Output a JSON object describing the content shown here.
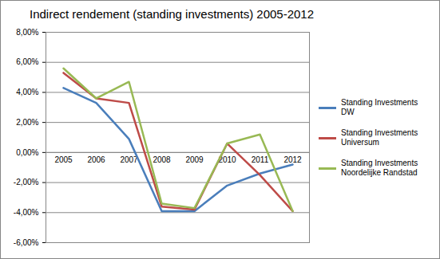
{
  "chart_data": {
    "type": "line",
    "title": "Indirect rendement (standing investments) 2005-2012",
    "categories": [
      "2005",
      "2006",
      "2007",
      "2008",
      "2009",
      "2010",
      "2011",
      "2012"
    ],
    "series": [
      {
        "name": "Standing Investments DW",
        "color": "#4a7ebb",
        "values": [
          4.3,
          3.3,
          0.9,
          -3.9,
          -3.9,
          -2.2,
          -1.4,
          -0.8
        ]
      },
      {
        "name": "Standing Investments Universum",
        "color": "#be4b48",
        "values": [
          5.3,
          3.6,
          3.3,
          -3.6,
          -3.8,
          0.6,
          -1.5,
          -3.9
        ]
      },
      {
        "name": "Standing Investments Noordelijke Randstad",
        "color": "#98b954",
        "values": [
          5.6,
          3.6,
          4.7,
          -3.4,
          -3.7,
          0.6,
          1.2,
          -3.9
        ]
      }
    ],
    "ylim": [
      -6,
      8
    ],
    "yticks": [
      {
        "value": -6,
        "label": "-6,00%"
      },
      {
        "value": -4,
        "label": "-4,00%"
      },
      {
        "value": -2,
        "label": "-2,00%"
      },
      {
        "value": 0,
        "label": "0,00%"
      },
      {
        "value": 2,
        "label": "2,00%"
      },
      {
        "value": 4,
        "label": "4,00%"
      },
      {
        "value": 6,
        "label": "6,00%"
      },
      {
        "value": 8,
        "label": "8,00%"
      }
    ],
    "grid": true,
    "legend": "right"
  }
}
